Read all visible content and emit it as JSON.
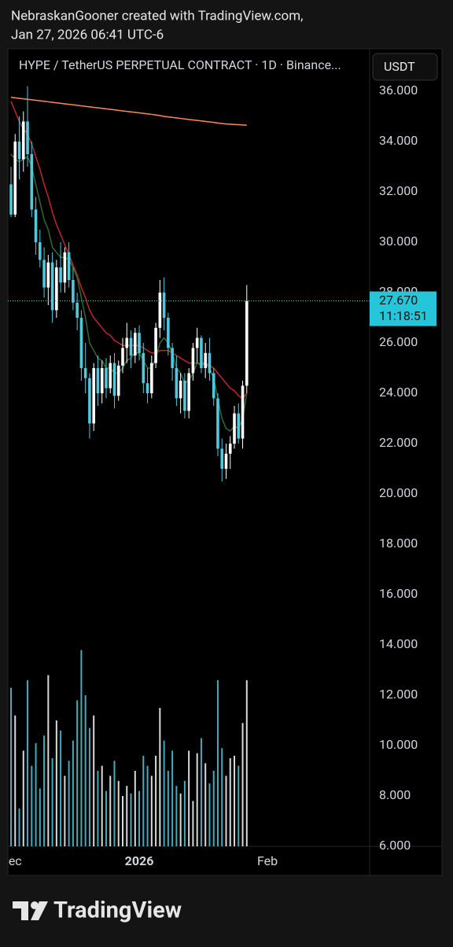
{
  "header": {
    "line1": "NebraskanGooner created with TradingView.com,",
    "line2": "Jan 27, 2026 06:41 UTC-6"
  },
  "chart_data": {
    "type": "candlestick",
    "title": "HYPE / TetherUS PERPETUAL CONTRACT · 1D · Binance...",
    "currency": "USDT",
    "up_color": "#ffffff",
    "down_color": "#4fc9dc",
    "ohlc": [
      [
        32.3,
        33.0,
        31.0,
        31.1
      ],
      [
        31.1,
        34.3,
        31.0,
        34.0
      ],
      [
        34.0,
        35.0,
        32.5,
        33.3
      ],
      [
        33.3,
        35.2,
        32.8,
        34.8
      ],
      [
        34.8,
        36.2,
        33.0,
        33.5
      ],
      [
        33.5,
        34.0,
        31.0,
        31.3
      ],
      [
        31.3,
        31.8,
        29.5,
        30.0
      ],
      [
        30.0,
        30.5,
        29.0,
        29.3
      ],
      [
        29.3,
        29.8,
        27.8,
        28.2
      ],
      [
        28.2,
        29.5,
        27.5,
        29.2
      ],
      [
        29.2,
        29.6,
        26.8,
        27.3
      ],
      [
        27.3,
        29.3,
        27.0,
        29.0
      ],
      [
        29.0,
        30.0,
        28.0,
        28.4
      ],
      [
        28.4,
        29.8,
        28.0,
        29.6
      ],
      [
        29.6,
        30.0,
        28.2,
        28.5
      ],
      [
        28.5,
        29.0,
        27.3,
        27.6
      ],
      [
        27.6,
        28.0,
        26.5,
        27.0
      ],
      [
        27.0,
        27.3,
        24.5,
        25.0
      ],
      [
        25.0,
        26.0,
        24.0,
        24.6
      ],
      [
        24.6,
        24.8,
        22.2,
        22.8
      ],
      [
        22.8,
        25.2,
        22.5,
        25.0
      ],
      [
        25.0,
        25.5,
        23.5,
        24.0
      ],
      [
        24.0,
        25.3,
        23.6,
        25.0
      ],
      [
        25.0,
        25.4,
        23.8,
        24.2
      ],
      [
        24.2,
        25.5,
        24.0,
        25.2
      ],
      [
        25.2,
        25.6,
        23.4,
        23.9
      ],
      [
        23.9,
        25.3,
        23.7,
        25.1
      ],
      [
        25.1,
        26.2,
        24.8,
        25.8
      ],
      [
        25.8,
        26.8,
        25.2,
        26.2
      ],
      [
        26.2,
        26.5,
        25.0,
        25.5
      ],
      [
        25.5,
        26.6,
        25.2,
        26.4
      ],
      [
        26.4,
        26.7,
        25.3,
        25.6
      ],
      [
        25.6,
        26.0,
        24.0,
        24.4
      ],
      [
        24.4,
        25.0,
        23.6,
        24.0
      ],
      [
        24.0,
        25.5,
        23.8,
        25.2
      ],
      [
        25.2,
        26.8,
        25.0,
        26.6
      ],
      [
        26.6,
        28.5,
        26.2,
        28.0
      ],
      [
        28.0,
        28.6,
        26.5,
        27.0
      ],
      [
        27.0,
        27.2,
        25.5,
        25.8
      ],
      [
        25.8,
        26.0,
        24.5,
        25.0
      ],
      [
        25.0,
        25.5,
        23.5,
        23.8
      ],
      [
        23.8,
        24.8,
        23.2,
        24.5
      ],
      [
        24.5,
        24.8,
        23.0,
        23.3
      ],
      [
        23.3,
        25.0,
        23.0,
        24.8
      ],
      [
        24.8,
        26.0,
        24.5,
        25.8
      ],
      [
        25.8,
        26.6,
        25.2,
        26.2
      ],
      [
        26.2,
        26.3,
        24.8,
        25.0
      ],
      [
        25.0,
        26.0,
        24.6,
        25.6
      ],
      [
        25.6,
        26.2,
        24.5,
        24.8
      ],
      [
        24.8,
        25.0,
        23.5,
        23.8
      ],
      [
        23.8,
        24.0,
        21.5,
        21.8
      ],
      [
        21.8,
        22.2,
        20.5,
        21.0
      ],
      [
        21.0,
        22.0,
        20.6,
        21.6
      ],
      [
        21.6,
        22.3,
        21.0,
        22.0
      ],
      [
        22.0,
        23.5,
        21.8,
        23.2
      ],
      [
        23.2,
        23.6,
        22.0,
        22.2
      ],
      [
        22.2,
        24.5,
        21.8,
        24.3
      ],
      [
        24.3,
        28.3,
        24.0,
        27.67
      ]
    ],
    "volume": [
      12.3,
      11.2,
      7.5,
      9.8,
      12.6,
      9.2,
      10.1,
      8.3,
      10.4,
      12.8,
      9.5,
      11.0,
      10.6,
      8.8,
      9.4,
      10.2,
      11.8,
      13.8,
      12.0,
      10.7,
      11.2,
      9.0,
      9.2,
      8.2,
      8.8,
      9.4,
      8.6,
      8.0,
      8.4,
      8.1,
      9.0,
      8.2,
      9.6,
      9.2,
      8.8,
      9.6,
      11.5,
      10.2,
      9.0,
      9.8,
      8.4,
      8.1,
      8.6,
      9.8,
      7.8,
      9.7,
      10.3,
      9.3,
      8.5,
      9.0,
      12.6,
      9.9,
      8.8,
      9.5,
      9.6,
      9.2,
      10.9,
      12.6
    ],
    "lines": [
      {
        "color": "#ff8a4c",
        "values": [
          35.76,
          35.74,
          35.72,
          35.7,
          35.68,
          35.66,
          35.64,
          35.62,
          35.6,
          35.58,
          35.56,
          35.54,
          35.52,
          35.5,
          35.48,
          35.46,
          35.44,
          35.42,
          35.4,
          35.38,
          35.36,
          35.34,
          35.32,
          35.3,
          35.28,
          35.26,
          35.24,
          35.22,
          35.2,
          35.18,
          35.16,
          35.14,
          35.12,
          35.1,
          35.08,
          35.06,
          35.03,
          35.0,
          34.98,
          34.96,
          34.94,
          34.92,
          34.9,
          34.88,
          34.86,
          34.84,
          34.82,
          34.8,
          34.78,
          34.76,
          34.74,
          34.72,
          34.7,
          34.69,
          34.68,
          34.67,
          34.66,
          34.65
        ]
      },
      {
        "color": "#c0262b",
        "values": [
          35.6,
          35.2,
          34.8,
          34.5,
          34.3,
          33.9,
          33.4,
          32.9,
          32.3,
          31.8,
          31.2,
          30.7,
          30.3,
          29.9,
          29.5,
          29.1,
          28.7,
          28.2,
          27.8,
          27.3,
          27.0,
          26.8,
          26.6,
          26.4,
          26.3,
          26.1,
          26.0,
          25.9,
          25.9,
          25.9,
          25.9,
          25.9,
          25.8,
          25.7,
          25.6,
          25.6,
          25.7,
          25.7,
          25.7,
          25.6,
          25.5,
          25.4,
          25.3,
          25.2,
          25.2,
          25.2,
          25.2,
          25.2,
          25.1,
          25.0,
          24.8,
          24.6,
          24.4,
          24.2,
          24.1,
          23.9,
          23.8,
          24.0
        ]
      },
      {
        "color": "#2e6b30",
        "values": [
          33.5,
          33.3,
          33.2,
          33.3,
          33.4,
          33.0,
          32.3,
          31.6,
          30.9,
          30.5,
          29.8,
          29.6,
          29.4,
          29.4,
          29.3,
          29.0,
          28.6,
          27.8,
          27.0,
          26.0,
          25.7,
          25.4,
          25.3,
          25.0,
          25.0,
          24.8,
          24.8,
          25.0,
          25.3,
          25.4,
          25.6,
          25.6,
          25.3,
          25.0,
          25.0,
          25.4,
          26.0,
          26.2,
          26.0,
          25.6,
          25.0,
          24.8,
          24.4,
          24.5,
          24.8,
          25.2,
          25.1,
          25.2,
          25.0,
          24.6,
          23.8,
          23.0,
          22.6,
          22.5,
          22.7,
          22.6,
          23.0,
          24.0
        ]
      }
    ],
    "last_price": {
      "value": 27.67,
      "label": "27.670"
    },
    "countdown": "11:18:51",
    "ylim": [
      6,
      37.6875
    ],
    "yticks": [
      {
        "value": 6,
        "label": "6.000"
      },
      {
        "value": 8,
        "label": "8.000"
      },
      {
        "value": 10,
        "label": "10.000"
      },
      {
        "value": 12,
        "label": "12.000"
      },
      {
        "value": 14,
        "label": "14.000"
      },
      {
        "value": 16,
        "label": "16.000"
      },
      {
        "value": 18,
        "label": "18.000"
      },
      {
        "value": 20,
        "label": "20.000"
      },
      {
        "value": 22,
        "label": "22.000"
      },
      {
        "value": 24,
        "label": "24.000"
      },
      {
        "value": 26,
        "label": "26.000"
      },
      {
        "value": 28,
        "label": "28.000"
      },
      {
        "value": 30,
        "label": "30.000"
      },
      {
        "value": 32,
        "label": "32.000"
      },
      {
        "value": 34,
        "label": "34.000"
      },
      {
        "value": 36,
        "label": "36.000"
      }
    ],
    "xlim": [
      -0.76,
      86.7
    ],
    "xticks": [
      {
        "value": 0,
        "label": "Dec"
      },
      {
        "value": 31,
        "label": "2026"
      },
      {
        "value": 62,
        "label": "Feb"
      }
    ],
    "grid": false
  },
  "footer": {
    "brand": "TradingView"
  }
}
